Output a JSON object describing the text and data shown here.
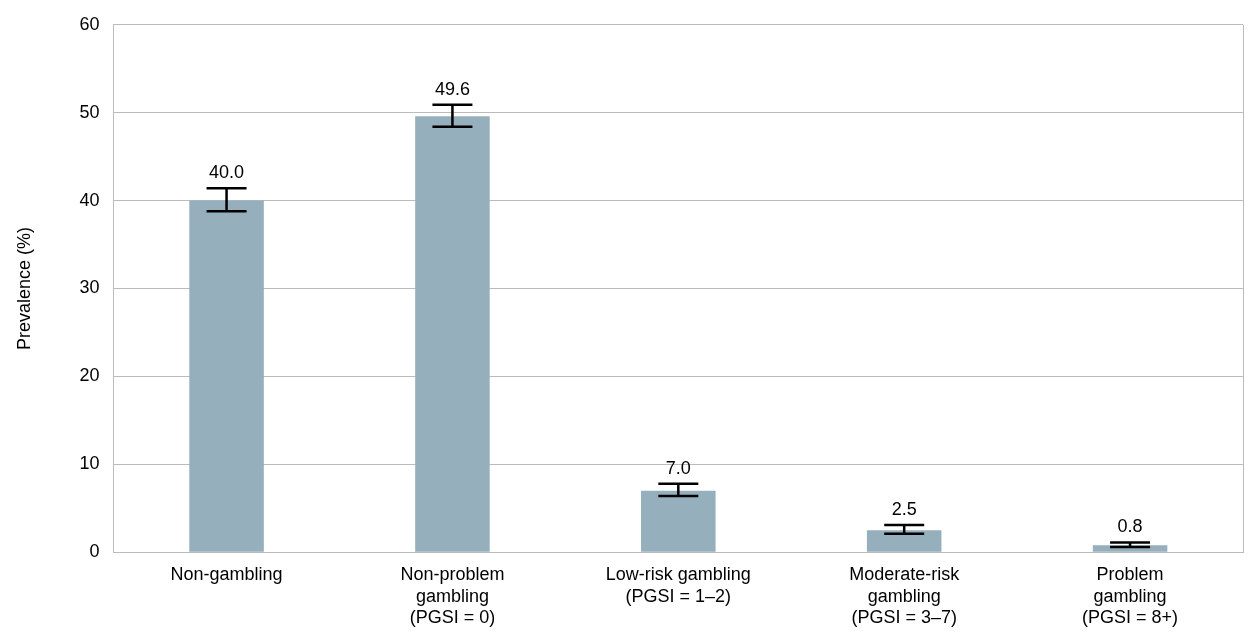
{
  "chart_data": {
    "type": "bar",
    "ylabel": "Prevalence (%)",
    "categories": [
      "Non-gambling",
      "Non-problem\ngambling\n(PGSI = 0)",
      "Low-risk gambling\n(PGSI = 1–2)",
      "Moderate-risk\ngambling\n(PGSI = 3–7)",
      "Problem\ngambling\n(PGSI = 8+)"
    ],
    "values": [
      40.0,
      49.6,
      7.0,
      2.5,
      0.8
    ],
    "errors": [
      [
        38.8,
        41.4
      ],
      [
        48.4,
        50.9
      ],
      [
        6.4,
        7.8
      ],
      [
        2.1,
        3.1
      ],
      [
        0.6,
        1.1
      ]
    ],
    "color": "#95afbd",
    "ylim": [
      0,
      60
    ],
    "yticks": [
      0,
      10,
      20,
      30,
      40,
      50,
      60
    ],
    "value_labels": [
      "40.0",
      "49.6",
      "7.0",
      "2.5",
      "0.8"
    ],
    "grid": "y",
    "legend": false
  }
}
